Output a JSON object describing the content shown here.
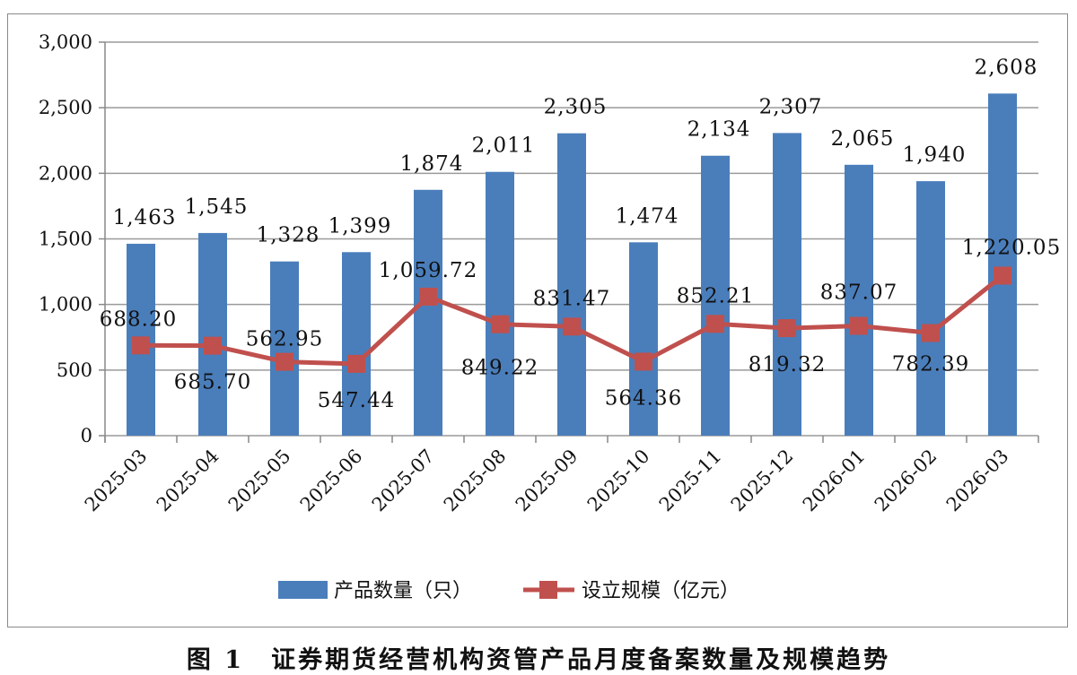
{
  "chart_data": {
    "type": "bar+line",
    "title": "图 1　证券期货经营机构资管产品月度备案数量及规模趋势",
    "categories": [
      "2025-03",
      "2025-04",
      "2025-05",
      "2025-06",
      "2025-07",
      "2025-08",
      "2025-09",
      "2025-10",
      "2025-11",
      "2025-12",
      "2026-01",
      "2026-02",
      "2026-03"
    ],
    "series": [
      {
        "name": "产品数量（只）",
        "type": "bar",
        "color": "#4a7ebb",
        "values": [
          1463,
          1545,
          1328,
          1399,
          1874,
          2011,
          2305,
          1474,
          2134,
          2307,
          2065,
          1940,
          2608
        ],
        "labels": [
          "1,463",
          "1,545",
          "1,328",
          "1,399",
          "1,874",
          "2,011",
          "2,305",
          "1,474",
          "2,134",
          "2,307",
          "2,065",
          "1,940",
          "2,608"
        ]
      },
      {
        "name": "设立规模（亿元）",
        "type": "line",
        "color": "#c0504d",
        "values": [
          688.2,
          685.7,
          562.95,
          547.44,
          1059.72,
          849.22,
          831.47,
          564.36,
          852.21,
          819.32,
          837.07,
          782.39,
          1220.05
        ],
        "labels": [
          "688.20",
          "685.70",
          "562.95",
          "547.44",
          "1,059.72",
          "849.22",
          "831.47",
          "564.36",
          "852.21",
          "819.32",
          "837.07",
          "782.39",
          "1,220.05"
        ]
      }
    ],
    "yticks": [
      "0",
      "500",
      "1,000",
      "1,500",
      "2,000",
      "2,500",
      "3,000"
    ],
    "ylim": [
      0,
      3000
    ],
    "grid": true,
    "legend": "bottom"
  }
}
